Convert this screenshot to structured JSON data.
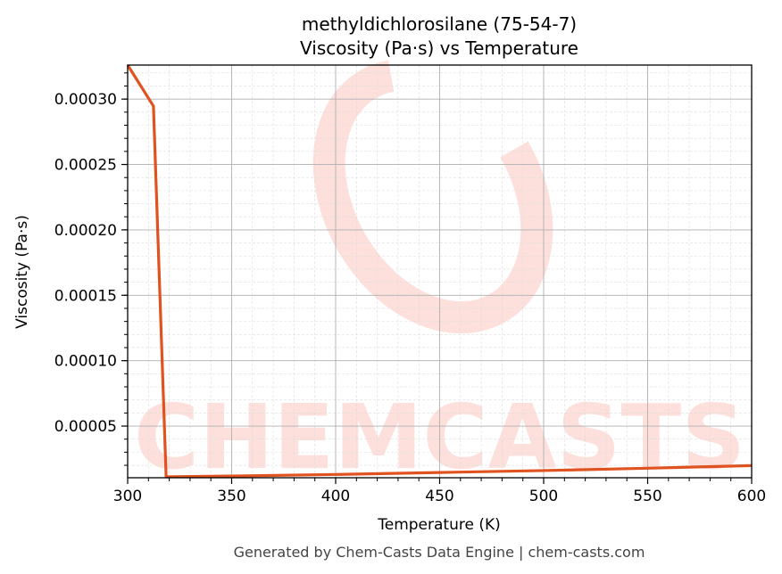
{
  "chart_data": {
    "type": "line",
    "title": "methyldichlorosilane (75-54-7)",
    "subtitle": "Viscosity (Pa·s) vs Temperature",
    "xlabel": "Temperature (K)",
    "ylabel": "Viscosity (Pa·s)",
    "xlim": [
      300,
      600
    ],
    "ylim": [
      1.05e-05,
      0.000326
    ],
    "x_ticks": [
      300,
      350,
      400,
      450,
      500,
      550,
      600
    ],
    "x_tick_labels": [
      "300",
      "350",
      "400",
      "450",
      "500",
      "550",
      "600"
    ],
    "y_ticks": [
      5e-05,
      0.0001,
      0.00015,
      0.0002,
      0.00025,
      0.0003
    ],
    "y_tick_labels": [
      "0.00005",
      "0.00010",
      "0.00015",
      "0.00020",
      "0.00025",
      "0.00030"
    ],
    "grid": true,
    "minor_grid": true,
    "line_color": "#e0521f",
    "x": [
      300,
      312.4,
      318.5,
      350,
      400,
      450,
      500,
      550,
      600
    ],
    "y": [
      0.000326,
      0.0002946,
      1.12e-05,
      1.18e-05,
      1.3e-05,
      1.45e-05,
      1.6e-05,
      1.78e-05,
      1.98e-05
    ]
  },
  "watermark": {
    "text": "CHEMCASTS",
    "color": "#fde0dc"
  },
  "footer": "Generated by Chem-Casts Data Engine | chem-casts.com"
}
